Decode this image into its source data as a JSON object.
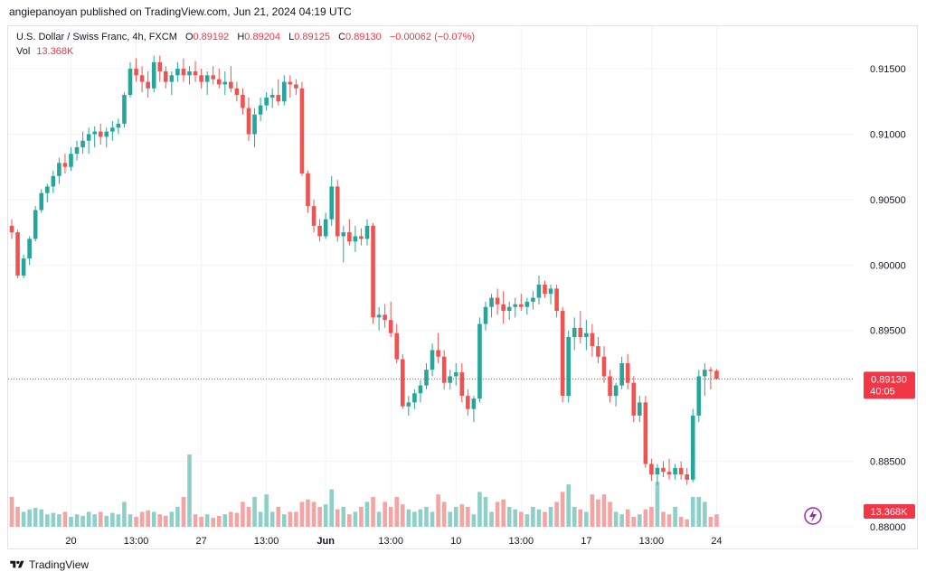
{
  "header": {
    "publisher_text": "angiepanoyan published on TradingView.com, Jun 21, 2024 04:19 UTC"
  },
  "legend": {
    "symbol": "U.S. Dollar / Swiss Franc, 4h, FXCM",
    "open_label": "O",
    "open_value": "0.89192",
    "high_label": "H",
    "high_value": "0.89204",
    "low_label": "L",
    "low_value": "0.89125",
    "close_label": "C",
    "close_value": "0.89130",
    "change": "−0.00062 (−0.07%)",
    "vol_label": "Vol",
    "vol_value": "13.368K"
  },
  "badges": {
    "price": "0.89130",
    "countdown": "40:05",
    "volume": "13.368K"
  },
  "footer": {
    "brand": "TradingView"
  },
  "colors": {
    "up": "#26a69a",
    "down": "#ef5350",
    "vol_up": "#8ed0c8",
    "vol_down": "#f4a4a3",
    "grid": "#f0f3fa",
    "last_price": "#f23645"
  },
  "chart_data": {
    "type": "candlestick",
    "y_ticks": [
      "0.91500",
      "0.91000",
      "0.90500",
      "0.90000",
      "0.89500",
      "0.88500",
      "0.88000"
    ],
    "x_ticks": [
      {
        "label": "20",
        "bar": 10
      },
      {
        "label": "13:00",
        "bar": 21
      },
      {
        "label": "27",
        "bar": 32
      },
      {
        "label": "13:00",
        "bar": 43
      },
      {
        "label": "Jun",
        "bar": 53
      },
      {
        "label": "13:00",
        "bar": 64
      },
      {
        "label": "10",
        "bar": 75
      },
      {
        "label": "13:00",
        "bar": 86
      },
      {
        "label": "17",
        "bar": 97
      },
      {
        "label": "13:00",
        "bar": 108
      },
      {
        "label": "24",
        "bar": 119
      }
    ],
    "ylim": [
      0.88,
      0.9168
    ],
    "last_close": 0.8913,
    "candles": [
      [
        0.903,
        0.9035,
        0.902,
        0.9025,
        6
      ],
      [
        0.9025,
        0.9027,
        0.899,
        0.8992,
        4
      ],
      [
        0.8992,
        0.9008,
        0.899,
        0.9005,
        3
      ],
      [
        0.9005,
        0.9022,
        0.9,
        0.902,
        3.5
      ],
      [
        0.902,
        0.9045,
        0.9018,
        0.9042,
        3.8
      ],
      [
        0.9042,
        0.9058,
        0.904,
        0.9055,
        3.5
      ],
      [
        0.9055,
        0.9062,
        0.9048,
        0.906,
        2.5
      ],
      [
        0.906,
        0.9072,
        0.9055,
        0.9068,
        2.8
      ],
      [
        0.9068,
        0.9082,
        0.9062,
        0.9078,
        2.5
      ],
      [
        0.9078,
        0.9085,
        0.907,
        0.9075,
        3
      ],
      [
        0.9075,
        0.909,
        0.9072,
        0.9085,
        2
      ],
      [
        0.9085,
        0.9095,
        0.908,
        0.909,
        2.5
      ],
      [
        0.909,
        0.9102,
        0.9085,
        0.9095,
        2.2
      ],
      [
        0.9095,
        0.9105,
        0.9085,
        0.91,
        3
      ],
      [
        0.91,
        0.9106,
        0.909,
        0.9102,
        2.5
      ],
      [
        0.9102,
        0.9108,
        0.9092,
        0.9098,
        3
      ],
      [
        0.9098,
        0.9105,
        0.909,
        0.9102,
        2.2
      ],
      [
        0.9102,
        0.911,
        0.9095,
        0.9105,
        2.8
      ],
      [
        0.9105,
        0.9112,
        0.91,
        0.9108,
        2.5
      ],
      [
        0.9108,
        0.9132,
        0.9105,
        0.913,
        5
      ],
      [
        0.913,
        0.9155,
        0.9128,
        0.915,
        2.5
      ],
      [
        0.915,
        0.9158,
        0.914,
        0.9145,
        2
      ],
      [
        0.9145,
        0.9152,
        0.9132,
        0.914,
        3
      ],
      [
        0.914,
        0.9148,
        0.9128,
        0.9135,
        3.3
      ],
      [
        0.9135,
        0.916,
        0.9132,
        0.9155,
        3
      ],
      [
        0.9155,
        0.916,
        0.914,
        0.9148,
        2.5
      ],
      [
        0.9148,
        0.9152,
        0.9135,
        0.914,
        2.2
      ],
      [
        0.914,
        0.9148,
        0.913,
        0.9145,
        3
      ],
      [
        0.9145,
        0.9155,
        0.914,
        0.915,
        4
      ],
      [
        0.915,
        0.9158,
        0.914,
        0.9145,
        6
      ],
      [
        0.9145,
        0.9152,
        0.9138,
        0.9148,
        14.5
      ],
      [
        0.9148,
        0.9156,
        0.914,
        0.9145,
        2.5
      ],
      [
        0.9145,
        0.915,
        0.9135,
        0.914,
        2
      ],
      [
        0.914,
        0.9148,
        0.913,
        0.9145,
        2.5
      ],
      [
        0.9145,
        0.9152,
        0.9138,
        0.9142,
        1.8
      ],
      [
        0.9142,
        0.915,
        0.9135,
        0.9138,
        2.2
      ],
      [
        0.9138,
        0.9148,
        0.913,
        0.914,
        2.5
      ],
      [
        0.914,
        0.9152,
        0.9132,
        0.9135,
        3
      ],
      [
        0.9135,
        0.914,
        0.9125,
        0.913,
        2.8
      ],
      [
        0.913,
        0.9135,
        0.9115,
        0.912,
        5
      ],
      [
        0.912,
        0.9128,
        0.9095,
        0.91,
        4
      ],
      [
        0.91,
        0.912,
        0.909,
        0.9115,
        6
      ],
      [
        0.9115,
        0.9128,
        0.911,
        0.9122,
        3
      ],
      [
        0.9122,
        0.9132,
        0.9118,
        0.9128,
        6.5
      ],
      [
        0.9128,
        0.9135,
        0.912,
        0.913,
        3
      ],
      [
        0.913,
        0.9142,
        0.9122,
        0.9125,
        4
      ],
      [
        0.9125,
        0.9145,
        0.9122,
        0.914,
        2.5
      ],
      [
        0.914,
        0.9145,
        0.9128,
        0.9138,
        3
      ],
      [
        0.9138,
        0.9142,
        0.913,
        0.9135,
        3
      ],
      [
        0.9135,
        0.914,
        0.9068,
        0.907,
        5
      ],
      [
        0.907,
        0.9072,
        0.904,
        0.9045,
        5.5
      ],
      [
        0.9045,
        0.905,
        0.9025,
        0.903,
        5
      ],
      [
        0.903,
        0.9035,
        0.9018,
        0.9022,
        4
      ],
      [
        0.9022,
        0.904,
        0.902,
        0.9035,
        4.5
      ],
      [
        0.9035,
        0.9068,
        0.903,
        0.906,
        7.5
      ],
      [
        0.906,
        0.9065,
        0.9018,
        0.9022,
        3.5
      ],
      [
        0.9022,
        0.903,
        0.9002,
        0.9025,
        4
      ],
      [
        0.9025,
        0.9035,
        0.9015,
        0.9018,
        2.5
      ],
      [
        0.9018,
        0.903,
        0.901,
        0.9022,
        3
      ],
      [
        0.9022,
        0.9028,
        0.9015,
        0.902,
        4
      ],
      [
        0.902,
        0.9035,
        0.9015,
        0.903,
        5
      ],
      [
        0.903,
        0.9032,
        0.8955,
        0.896,
        6
      ],
      [
        0.896,
        0.8968,
        0.895,
        0.8962,
        3
      ],
      [
        0.8962,
        0.897,
        0.8952,
        0.8958,
        5
      ],
      [
        0.8958,
        0.8972,
        0.8945,
        0.8948,
        4
      ],
      [
        0.8948,
        0.8955,
        0.8925,
        0.8928,
        6
      ],
      [
        0.8928,
        0.8932,
        0.889,
        0.8892,
        4.5
      ],
      [
        0.8892,
        0.89,
        0.8885,
        0.8895,
        3.5
      ],
      [
        0.8895,
        0.8905,
        0.889,
        0.8902,
        3
      ],
      [
        0.8902,
        0.8912,
        0.8895,
        0.8908,
        3.5
      ],
      [
        0.8908,
        0.8925,
        0.8905,
        0.892,
        4
      ],
      [
        0.892,
        0.894,
        0.8915,
        0.8935,
        3
      ],
      [
        0.8935,
        0.8948,
        0.8925,
        0.893,
        6.5
      ],
      [
        0.893,
        0.8935,
        0.8905,
        0.891,
        5
      ],
      [
        0.891,
        0.892,
        0.8905,
        0.8915,
        3
      ],
      [
        0.8915,
        0.8925,
        0.8908,
        0.8918,
        4
      ],
      [
        0.8918,
        0.8925,
        0.8895,
        0.89,
        4.5
      ],
      [
        0.89,
        0.8905,
        0.8885,
        0.889,
        4
      ],
      [
        0.889,
        0.89,
        0.888,
        0.8898,
        2.5
      ],
      [
        0.8898,
        0.896,
        0.8895,
        0.8955,
        7
      ],
      [
        0.8955,
        0.8972,
        0.895,
        0.8968,
        6
      ],
      [
        0.8968,
        0.8978,
        0.896,
        0.8975,
        3
      ],
      [
        0.8975,
        0.8982,
        0.8962,
        0.897,
        5
      ],
      [
        0.897,
        0.898,
        0.8955,
        0.8965,
        5.5
      ],
      [
        0.8965,
        0.8972,
        0.8958,
        0.8968,
        4
      ],
      [
        0.8968,
        0.8975,
        0.896,
        0.897,
        3.5
      ],
      [
        0.897,
        0.8978,
        0.8965,
        0.8968,
        3
      ],
      [
        0.8968,
        0.8975,
        0.8962,
        0.8972,
        2.5
      ],
      [
        0.8972,
        0.898,
        0.8966,
        0.8975,
        4
      ],
      [
        0.8975,
        0.8992,
        0.897,
        0.8985,
        3.5
      ],
      [
        0.8985,
        0.8988,
        0.8975,
        0.8978,
        3
      ],
      [
        0.8978,
        0.8985,
        0.897,
        0.8982,
        4
      ],
      [
        0.8982,
        0.8985,
        0.896,
        0.8965,
        5
      ],
      [
        0.8965,
        0.8968,
        0.8895,
        0.89,
        7
      ],
      [
        0.89,
        0.895,
        0.8895,
        0.8945,
        8.5
      ],
      [
        0.8945,
        0.896,
        0.8935,
        0.8952,
        4
      ],
      [
        0.8952,
        0.8965,
        0.894,
        0.8945,
        3.5
      ],
      [
        0.8945,
        0.8958,
        0.8935,
        0.8948,
        3
      ],
      [
        0.8948,
        0.8955,
        0.893,
        0.8938,
        6.5
      ],
      [
        0.8938,
        0.8945,
        0.8925,
        0.893,
        5.5
      ],
      [
        0.893,
        0.8938,
        0.891,
        0.8915,
        6.5
      ],
      [
        0.8915,
        0.892,
        0.8895,
        0.89,
        5
      ],
      [
        0.89,
        0.891,
        0.8892,
        0.8908,
        3
      ],
      [
        0.8908,
        0.893,
        0.8905,
        0.8925,
        2.5
      ],
      [
        0.8925,
        0.8932,
        0.8905,
        0.891,
        3.5
      ],
      [
        0.891,
        0.8915,
        0.888,
        0.8885,
        2
      ],
      [
        0.8885,
        0.89,
        0.888,
        0.8895,
        2.5
      ],
      [
        0.8895,
        0.89,
        0.8845,
        0.8848,
        3.5
      ],
      [
        0.8848,
        0.8852,
        0.8835,
        0.884,
        4
      ],
      [
        0.884,
        0.8848,
        0.8832,
        0.8845,
        9
      ],
      [
        0.8845,
        0.885,
        0.8838,
        0.8842,
        3
      ],
      [
        0.8842,
        0.8852,
        0.8836,
        0.884,
        2.5
      ],
      [
        0.884,
        0.8848,
        0.8836,
        0.8845,
        4
      ],
      [
        0.8845,
        0.885,
        0.8836,
        0.884,
        2
      ],
      [
        0.884,
        0.8845,
        0.8832,
        0.8836,
        1.5
      ],
      [
        0.8836,
        0.889,
        0.8834,
        0.8885,
        6
      ],
      [
        0.8885,
        0.892,
        0.888,
        0.8915,
        6
      ],
      [
        0.8915,
        0.8925,
        0.89,
        0.892,
        5
      ],
      [
        0.892,
        0.8922,
        0.8905,
        0.8919,
        2
      ],
      [
        0.89192,
        0.89204,
        0.89125,
        0.8913,
        2.5
      ]
    ]
  }
}
